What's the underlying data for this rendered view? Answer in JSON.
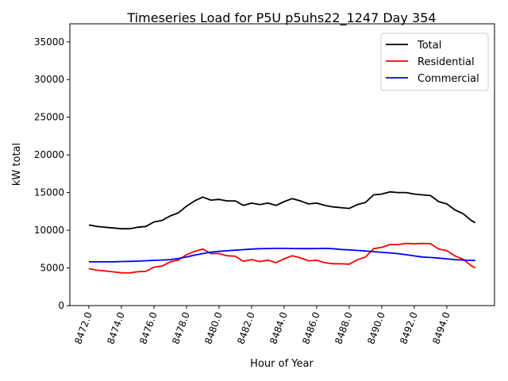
{
  "chart_data": {
    "type": "line",
    "title": "Timeseries Load for P5U p5uhs22_1247  Day 354",
    "xlabel": "Hour of Year",
    "ylabel": "kW total",
    "xlim": [
      8470.83,
      8496.93
    ],
    "ylim": [
      0,
      37400
    ],
    "xticks": [
      8472,
      8474,
      8476,
      8478,
      8480,
      8482,
      8484,
      8486,
      8488,
      8490,
      8492,
      8494
    ],
    "xtick_labels": [
      "8472.0",
      "8474.0",
      "8476.0",
      "8478.0",
      "8480.0",
      "8482.0",
      "8484.0",
      "8486.0",
      "8488.0",
      "8490.0",
      "8492.0",
      "8494.0"
    ],
    "yticks": [
      0,
      5000,
      10000,
      15000,
      20000,
      25000,
      30000,
      35000
    ],
    "ytick_labels": [
      "0",
      "5000",
      "10000",
      "15000",
      "20000",
      "25000",
      "30000",
      "35000"
    ],
    "grid": false,
    "legend_position": "top-right",
    "x": [
      8472,
      8472.5,
      8473,
      8473.5,
      8474,
      8474.5,
      8475,
      8475.5,
      8476,
      8476.5,
      8477,
      8477.5,
      8478,
      8478.5,
      8479,
      8479.5,
      8480,
      8480.5,
      8481,
      8481.5,
      8482,
      8482.5,
      8483,
      8483.5,
      8484,
      8484.5,
      8485,
      8485.5,
      8486,
      8486.5,
      8487,
      8487.5,
      8488,
      8488.5,
      8489,
      8489.5,
      8490,
      8490.5,
      8491,
      8491.5,
      8492,
      8492.5,
      8493,
      8493.5,
      8494,
      8494.5,
      8495,
      8495.5,
      8495.75
    ],
    "series": [
      {
        "name": "Total",
        "color": "#000000",
        "values": [
          10700,
          10500,
          10400,
          10300,
          10200,
          10200,
          10400,
          10500,
          11100,
          11300,
          11900,
          12300,
          13200,
          13900,
          14400,
          14000,
          14100,
          13900,
          13900,
          13300,
          13600,
          13400,
          13600,
          13300,
          13800,
          14200,
          13900,
          13500,
          13600,
          13300,
          13100,
          13000,
          12900,
          13400,
          13700,
          14700,
          14800,
          15100,
          15000,
          15000,
          14800,
          14700,
          14600,
          13800,
          13500,
          12700,
          12200,
          11300,
          11000
        ]
      },
      {
        "name": "Residential",
        "color": "#ff0000",
        "values": [
          4900,
          4700,
          4600,
          4480,
          4350,
          4330,
          4500,
          4550,
          5100,
          5250,
          5800,
          6050,
          6750,
          7200,
          7500,
          6900,
          6900,
          6620,
          6550,
          5870,
          6100,
          5850,
          6030,
          5700,
          6200,
          6620,
          6340,
          5940,
          6020,
          5700,
          5550,
          5550,
          5500,
          6080,
          6450,
          7550,
          7730,
          8100,
          8100,
          8250,
          8200,
          8250,
          8220,
          7500,
          7300,
          6600,
          6150,
          5300,
          5020
        ]
      },
      {
        "name": "Commercial",
        "color": "#0000ff",
        "values": [
          5800,
          5800,
          5800,
          5820,
          5850,
          5870,
          5900,
          5950,
          6000,
          6050,
          6100,
          6250,
          6450,
          6700,
          6900,
          7100,
          7200,
          7280,
          7350,
          7430,
          7500,
          7550,
          7570,
          7600,
          7600,
          7580,
          7560,
          7560,
          7580,
          7600,
          7550,
          7450,
          7400,
          7320,
          7250,
          7150,
          7070,
          7000,
          6900,
          6750,
          6600,
          6450,
          6380,
          6300,
          6200,
          6100,
          6050,
          6000,
          5980
        ]
      }
    ]
  }
}
